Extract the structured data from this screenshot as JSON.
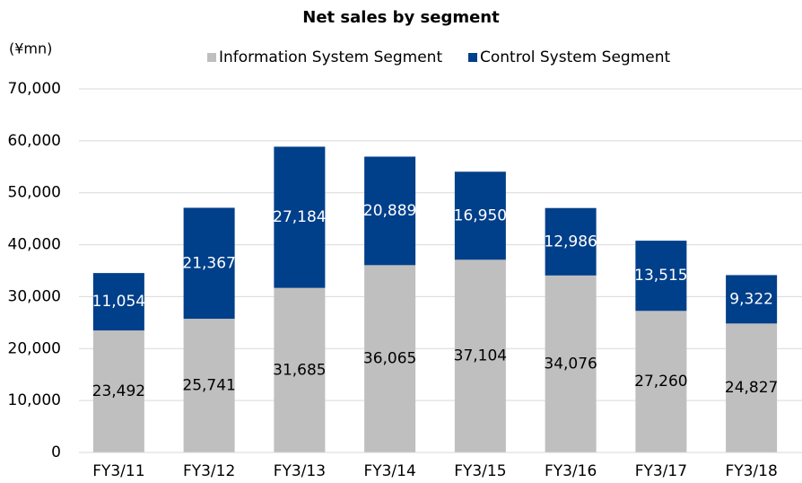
{
  "chart_data": {
    "type": "stacked_bar",
    "title": "Net sales by segment",
    "y_label": "(¥mn)",
    "categories": [
      "FY3/11",
      "FY3/12",
      "FY3/13",
      "FY3/14",
      "FY3/15",
      "FY3/16",
      "FY3/17",
      "FY3/18"
    ],
    "series": [
      {
        "name": "Information System Segment",
        "color": "#bfbfbf",
        "values": [
          23492,
          25741,
          31685,
          36065,
          37104,
          34076,
          27260,
          24827
        ],
        "value_labels": [
          "23,492",
          "25,741",
          "31,685",
          "36,065",
          "37,104",
          "34,076",
          "27,260",
          "24,827"
        ]
      },
      {
        "name": "Control System Segment",
        "color": "#003f8a",
        "values": [
          11054,
          21367,
          27184,
          20889,
          16950,
          12986,
          13515,
          9322
        ],
        "value_labels": [
          "11,054",
          "21,367",
          "27,184",
          "20,889",
          "16,950",
          "12,986",
          "13,515",
          "9,322"
        ]
      }
    ],
    "ylim": [
      0,
      70000
    ],
    "yticks": [
      0,
      {
        "value": 10000,
        "label": "10,000"
      },
      {
        "value": 20000,
        "label": "20,000"
      },
      {
        "value": 30000,
        "label": "30,000"
      },
      {
        "value": 40000,
        "label": "40,000"
      },
      {
        "value": 50000,
        "label": "50,000"
      },
      {
        "value": 60000,
        "label": "60,000"
      },
      {
        "value": 70000,
        "label": "70,000"
      }
    ],
    "grid": true,
    "legend": "top"
  }
}
